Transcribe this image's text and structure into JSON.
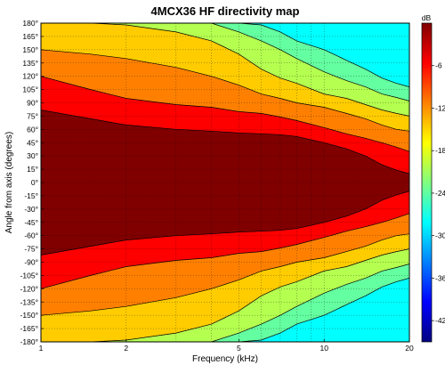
{
  "chart_data": {
    "type": "heatmap",
    "subtype": "filled-contour",
    "title": "4MCX36 HF directivity map",
    "xlabel": "Frequency (kHz)",
    "ylabel": "Angle from axis (degrees)",
    "x_scale": "log",
    "xlim": [
      1,
      20
    ],
    "x_ticks": [
      1,
      2,
      5,
      10,
      20
    ],
    "x_tick_labels": [
      "1",
      "2",
      "5",
      "10",
      "20"
    ],
    "ylim": [
      -180,
      180
    ],
    "y_ticks": [
      180,
      165,
      150,
      135,
      120,
      105,
      90,
      75,
      60,
      45,
      30,
      15,
      0,
      -15,
      -30,
      -45,
      -60,
      -75,
      -90,
      -105,
      -120,
      -135,
      -150,
      -165,
      -180
    ],
    "y_tick_labels": [
      "180°",
      "165°",
      "150°",
      "135°",
      "120°",
      "105°",
      "90°",
      "75°",
      "60°",
      "45°",
      "30°",
      "15°",
      "0°",
      "-15°",
      "-30°",
      "-45°",
      "-60°",
      "-75°",
      "-90°",
      "-105°",
      "-120°",
      "-135°",
      "-150°",
      "-165°",
      "-180°"
    ],
    "grid": true,
    "colorbar": {
      "unit_label": "dB",
      "range": [
        -45,
        0
      ],
      "ticks": [
        -6,
        -12,
        -18,
        -24,
        -30,
        -36,
        -42
      ],
      "tick_labels": [
        "-6",
        "-12",
        "-18",
        "-24",
        "-30",
        "-36",
        "-42"
      ]
    },
    "contour_levels_db": [
      -3,
      -6,
      -9,
      -12,
      -15,
      -18,
      -21,
      -24,
      -27,
      -30,
      -33,
      -36
    ],
    "level_colors": [
      "#800000",
      "#ff0000",
      "#ff8000",
      "#ffcc00",
      "#b4ff50",
      "#64ffa0",
      "#00ffff",
      "#00b4ff",
      "#0064ff",
      "#0000ff",
      "#0000b4",
      "#000090"
    ],
    "contour_boundaries": {
      "note": "Approximate half-angle (degrees, symmetric about 0°) at which the response falls to each level, per frequency.",
      "frequency_khz": [
        1,
        1.5,
        2,
        3,
        4,
        5,
        6,
        7,
        8,
        10,
        12,
        14,
        16,
        18,
        20
      ],
      "minus3dB_angle": [
        82,
        72,
        65,
        60,
        58,
        56,
        55,
        54,
        52,
        45,
        38,
        30,
        20,
        14,
        10
      ],
      "minus6dB_angle": [
        120,
        105,
        95,
        88,
        85,
        80,
        78,
        74,
        70,
        62,
        55,
        50,
        45,
        40,
        35
      ],
      "minus9dB_angle": [
        150,
        145,
        140,
        130,
        120,
        110,
        100,
        95,
        90,
        85,
        78,
        72,
        65,
        60,
        58
      ],
      "minus12dB_angle": [
        180,
        180,
        178,
        170,
        160,
        145,
        128,
        118,
        112,
        100,
        95,
        88,
        82,
        78,
        75
      ],
      "minus15dB_angle": [
        180,
        180,
        180,
        180,
        180,
        170,
        160,
        150,
        140,
        125,
        115,
        108,
        100,
        96,
        92
      ],
      "minus18dB_angle": [
        180,
        180,
        180,
        180,
        180,
        180,
        178,
        170,
        160,
        150,
        138,
        128,
        118,
        112,
        108
      ]
    }
  }
}
